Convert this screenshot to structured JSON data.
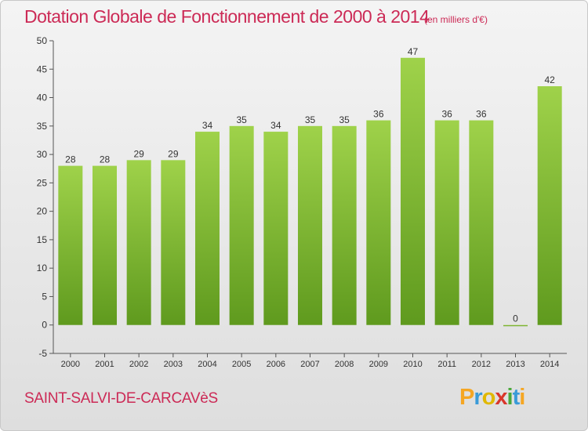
{
  "chart_data": {
    "type": "bar",
    "title": "Dotation Globale de Fonctionnement de 2000 à 2014",
    "subtitle": "(en milliers d'€)",
    "categories": [
      "2000",
      "2001",
      "2002",
      "2003",
      "2004",
      "2005",
      "2006",
      "2007",
      "2008",
      "2009",
      "2010",
      "2011",
      "2012",
      "2013",
      "2014"
    ],
    "values": [
      28,
      28,
      29,
      29,
      34,
      35,
      34,
      35,
      35,
      36,
      47,
      36,
      36,
      0,
      42
    ],
    "ylim": [
      -5,
      50
    ],
    "yticks": [
      -5,
      0,
      5,
      10,
      15,
      20,
      25,
      30,
      35,
      40,
      45,
      50
    ],
    "grid": false,
    "bar_color": "#7cb82f",
    "bar_color_light": "#9fd24a",
    "bar_color_dark": "#5f9a1e"
  },
  "footer": {
    "commune": "SAINT-SALVI-DE-CARCAVèS",
    "logo_letters": [
      "P",
      "r",
      "o",
      "x",
      "i",
      "t",
      "i"
    ]
  },
  "colors": {
    "title": "#cc2a56",
    "axis": "#555555"
  }
}
